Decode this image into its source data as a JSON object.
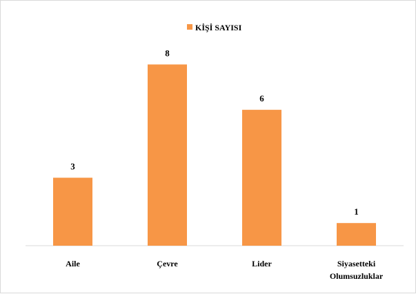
{
  "chart_data": {
    "type": "bar",
    "categories": [
      "Aile",
      "Çevre",
      "Lider",
      "Siyasetteki Olumsuzluklar"
    ],
    "category_lines": [
      [
        "Aile"
      ],
      [
        "Çevre"
      ],
      [
        "Lider"
      ],
      [
        "Siyasetteki",
        "Olumsuzluklar"
      ]
    ],
    "series": [
      {
        "name": "KİŞİ SAYISI",
        "values": [
          3,
          8,
          6,
          1
        ],
        "color": "#f79646"
      }
    ],
    "data_labels": true,
    "ylim": [
      0,
      8.5
    ],
    "grid": false,
    "legend_position": "top"
  }
}
